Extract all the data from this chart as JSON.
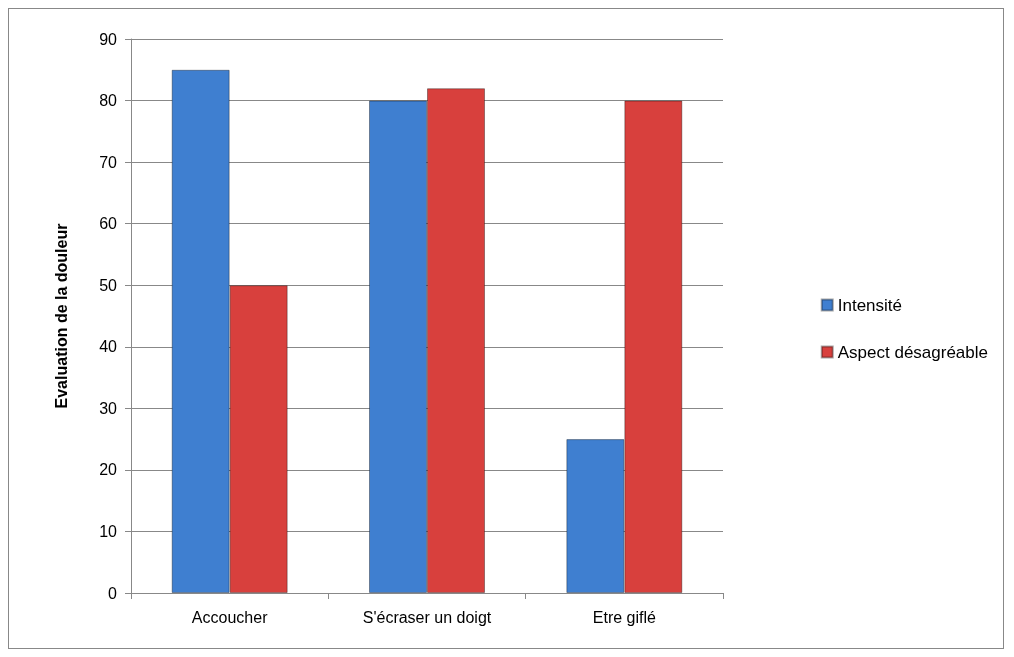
{
  "chart_data": {
    "type": "bar",
    "ylabel": "Evaluation de la douleur",
    "categories": [
      "Accoucher",
      "S'écraser un doigt",
      "Etre giflé"
    ],
    "series": [
      {
        "name": "Intensité",
        "color": "#3f7fd0",
        "values": [
          85,
          80,
          25
        ]
      },
      {
        "name": "Aspect désagréable",
        "color": "#d8403d",
        "values": [
          50,
          82,
          80
        ]
      }
    ],
    "ylim": [
      0,
      90
    ],
    "yticks": [
      0,
      10,
      20,
      30,
      40,
      50,
      60,
      70,
      80,
      90
    ],
    "grid": "y",
    "legend": "right"
  }
}
